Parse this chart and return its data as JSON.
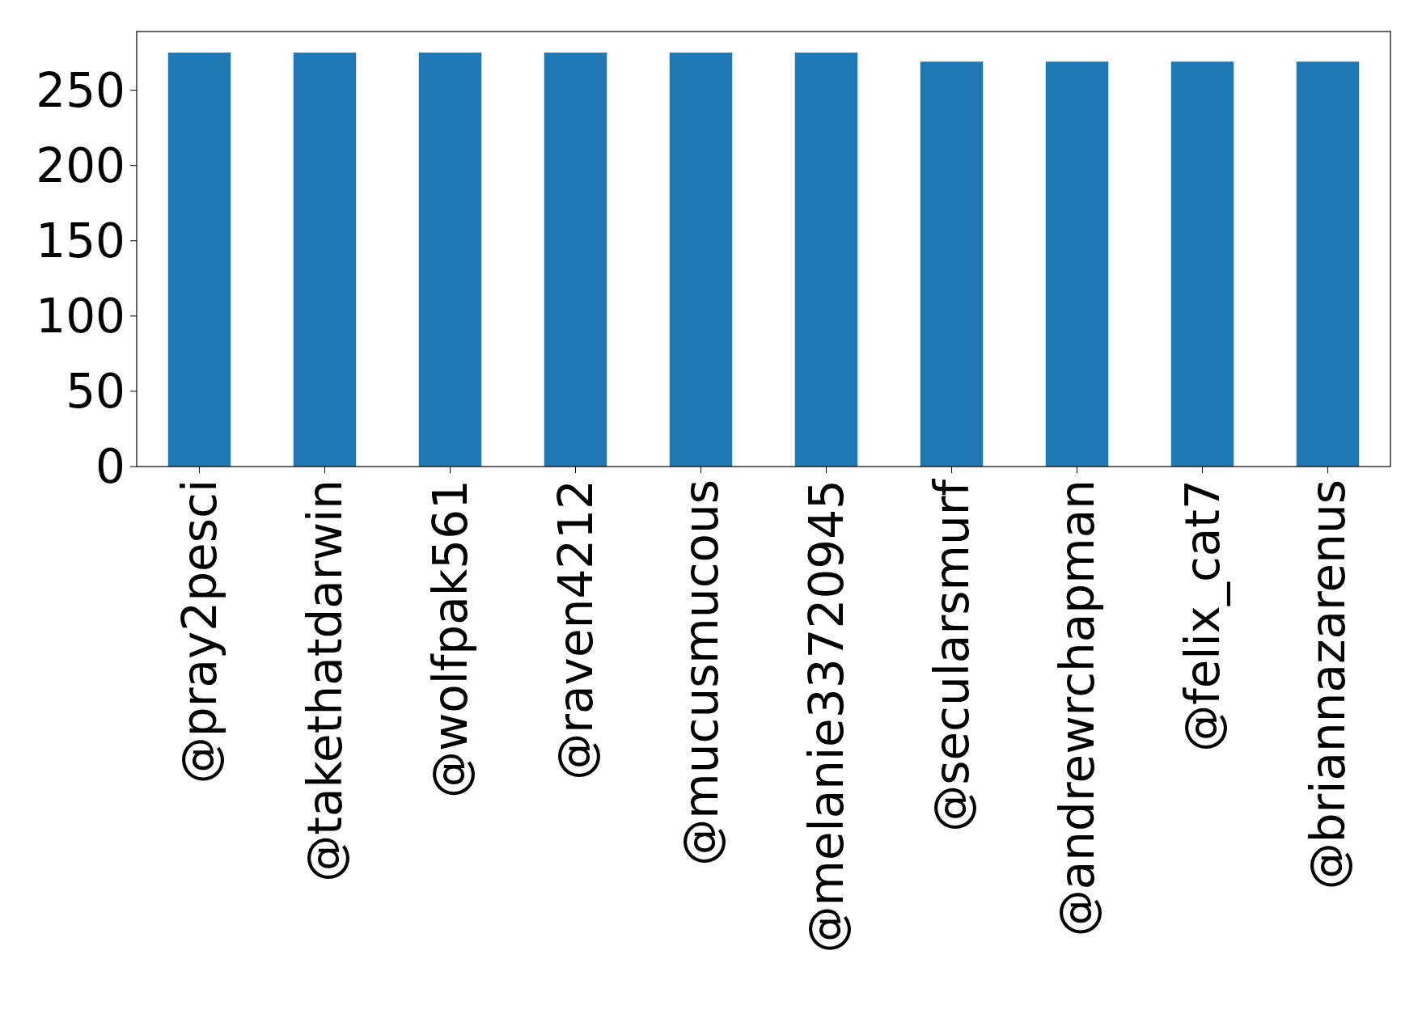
{
  "chart_data": {
    "type": "bar",
    "categories": [
      "@pray2pesci",
      "@takethatdarwin",
      "@wolfpak561",
      "@raven4212",
      "@mucusmucous",
      "@melanie33720945",
      "@secularsmurf",
      "@andrewrchapman",
      "@felix_cat7",
      "@briannazarenus"
    ],
    "values": [
      275,
      275,
      275,
      275,
      275,
      275,
      269,
      269,
      269,
      269
    ],
    "color": "#1f77b4",
    "ylim": [
      0,
      289
    ],
    "yticks": [
      0,
      50,
      100,
      150,
      200,
      250
    ],
    "grid": false
  }
}
